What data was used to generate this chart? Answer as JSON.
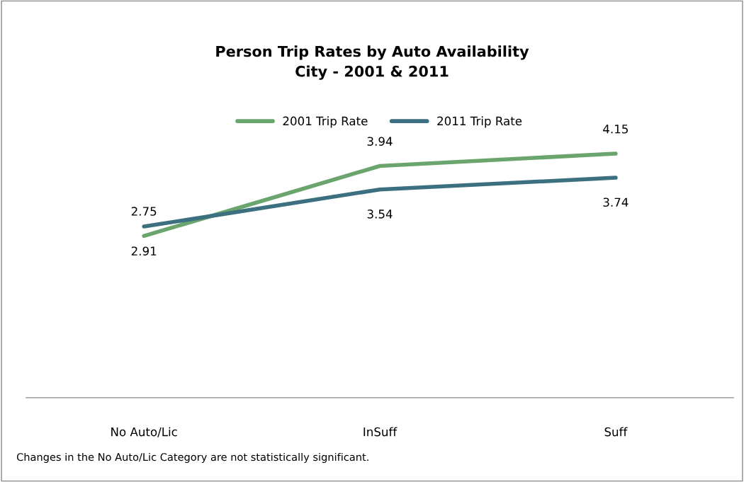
{
  "chart_data": {
    "type": "line",
    "title": "Person Trip Rates by Auto Availability\nCity - 2001 & 2011",
    "categories": [
      "No Auto/Lic",
      "InSuff",
      "Suff"
    ],
    "series": [
      {
        "name": "2001 Trip Rate",
        "color": "#6aa56e",
        "values": [
          2.75,
          3.94,
          4.15
        ]
      },
      {
        "name": "2011 Trip Rate",
        "color": "#3c7080",
        "values": [
          2.91,
          3.54,
          3.74
        ]
      }
    ],
    "grid": false,
    "legend": "top",
    "marker": "none",
    "line_style": "solid",
    "data_labels": true,
    "annotations": [
      "Changes in the No Auto/Lic Category are not statistically significant."
    ]
  }
}
